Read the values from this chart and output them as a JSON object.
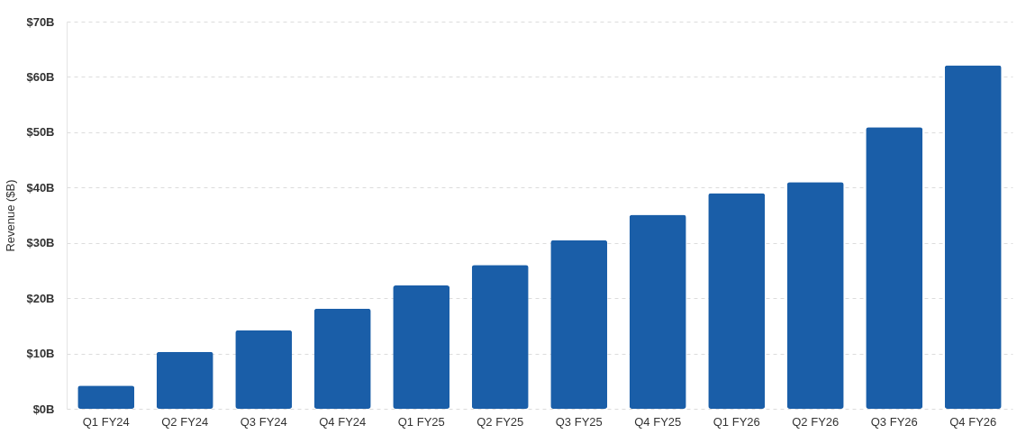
{
  "chart_data": {
    "type": "bar",
    "ylabel": "Revenue ($B)",
    "categories": [
      "Q1 FY24",
      "Q2 FY24",
      "Q3 FY24",
      "Q4 FY24",
      "Q1 FY25",
      "Q2 FY25",
      "Q3 FY25",
      "Q4 FY25",
      "Q1 FY26",
      "Q2 FY26",
      "Q3 FY26",
      "Q4 FY26"
    ],
    "values": [
      4.2,
      10.3,
      14.2,
      18.1,
      22.3,
      26.0,
      30.5,
      35.1,
      39.0,
      41.0,
      50.9,
      62.1
    ],
    "color": "#1a5ea8",
    "ylim": [
      0,
      70
    ],
    "yticks": [
      {
        "value": 0,
        "label": "$0B"
      },
      {
        "value": 10,
        "label": "$10B"
      },
      {
        "value": 20,
        "label": "$20B"
      },
      {
        "value": 30,
        "label": "$30B"
      },
      {
        "value": 40,
        "label": "$40B"
      },
      {
        "value": 50,
        "label": "$50B"
      },
      {
        "value": 60,
        "label": "$60B"
      },
      {
        "value": 70,
        "label": "$70B"
      }
    ],
    "grid": "y"
  }
}
